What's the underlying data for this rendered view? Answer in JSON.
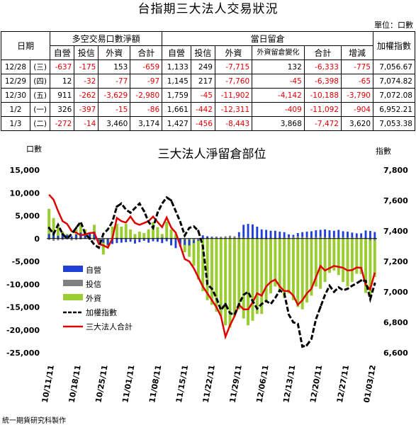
{
  "title": "台指期三大法人交易狀況",
  "unit": "單位：口數",
  "table": {
    "date_header": "日期",
    "group1": "多空交易口數淨額",
    "group2": "當日留倉",
    "index_header": "加權指數",
    "cols1": [
      "自營",
      "投信",
      "外資",
      "合計"
    ],
    "cols2": [
      "自營",
      "投信",
      "外資",
      "外資留倉變化",
      "合計",
      "增減"
    ],
    "rows": [
      {
        "date": "12/28",
        "dow": "(三)",
        "v": [
          "-637",
          "-175",
          "153",
          "-659",
          "1,133",
          "249",
          "-7,715",
          "132",
          "-6,333",
          "-775",
          "7,056.67"
        ]
      },
      {
        "date": "12/29",
        "dow": "(四)",
        "v": [
          "12",
          "-32",
          "-77",
          "-97",
          "1,145",
          "217",
          "-7,760",
          "-45",
          "-6,398",
          "-65",
          "7,074.82"
        ]
      },
      {
        "date": "12/30",
        "dow": "(五)",
        "v": [
          "911",
          "-262",
          "-3,629",
          "-2,980",
          "1,759",
          "-45",
          "-11,902",
          "-4,142",
          "-10,188",
          "-3,790",
          "7,072.08"
        ]
      },
      {
        "date": "1/2",
        "dow": "(一)",
        "v": [
          "326",
          "-397",
          "-15",
          "-86",
          "1,661",
          "-442",
          "-12,311",
          "-409",
          "-11,092",
          "-904",
          "6,952.21"
        ]
      },
      {
        "date": "1/3",
        "dow": "(二)",
        "v": [
          "-272",
          "-14",
          "3,460",
          "3,174",
          "1,427",
          "-456",
          "-8,443",
          "3,868",
          "-7,472",
          "3,620",
          "7,053.38"
        ]
      }
    ]
  },
  "footer": "統一期貨研究科製作",
  "colors": {
    "dealer": "#1f3fd6",
    "trust": "#808080",
    "foreign": "#9acd32",
    "index": "#000000",
    "total": "#e00000",
    "negative": "#e00000"
  },
  "chart_data": {
    "type": "bar",
    "title": "三大法人淨留倉部位",
    "ylabel_left": "口數",
    "ylabel_right": "指數",
    "ylim_left": [
      -25000,
      15000
    ],
    "ylim_right": [
      6600,
      7800
    ],
    "yticks_left": [
      "15,000",
      "10,000",
      "5,000",
      "0",
      "-5,000",
      "-10,000",
      "-15,000",
      "-20,000",
      "-25,000"
    ],
    "yticks_right": [
      "7,800",
      "7,600",
      "7,400",
      "7,200",
      "7,000",
      "6,800",
      "6,600"
    ],
    "xtick_labels": [
      "10/11/11",
      "10/18/11",
      "10/25/11",
      "11/01/11",
      "11/08/11",
      "11/15/11",
      "11/22/11",
      "11/29/11",
      "12/06/11",
      "12/13/11",
      "12/20/11",
      "12/27/11",
      "01/03/12"
    ],
    "legend": [
      "自營",
      "投信",
      "外資",
      "加權指數",
      "三大法人合計"
    ],
    "legend_position": "left-middle",
    "grid": false,
    "series": [
      {
        "name": "自營",
        "kind": "bar",
        "values": [
          1000,
          1500,
          600,
          1100,
          800,
          500,
          900,
          1300,
          700,
          1200,
          1500,
          -600,
          -900,
          -1400,
          -1200,
          -1000,
          -900,
          -800,
          -700,
          -1100,
          -800,
          -500,
          -900,
          -600,
          -700,
          -1000,
          -600,
          -1500,
          -2100,
          -1800,
          -1400,
          -1500,
          -1000,
          -500,
          700,
          500,
          400,
          400,
          200,
          300,
          600,
          400,
          1400,
          3000,
          3200,
          3100,
          2600,
          2000,
          1900,
          1700,
          1700,
          1500,
          1400,
          900,
          800,
          1200,
          1400,
          1500,
          1600,
          1800,
          1900,
          2000,
          1800,
          1700,
          1900,
          1600,
          1500,
          1300,
          1133,
          1145,
          1759,
          1661,
          1427
        ]
      },
      {
        "name": "投信",
        "kind": "bar",
        "values": [
          -300,
          -500,
          -400,
          -300,
          -200,
          -400,
          -300,
          -200,
          -100,
          -300,
          -400,
          -300,
          -200,
          -100,
          300,
          200,
          100,
          -100,
          -200,
          -300,
          -200,
          -100,
          0,
          100,
          200,
          300,
          200,
          100,
          0,
          -100,
          -200,
          -300,
          -400,
          -300,
          -200,
          -100,
          200,
          300,
          400,
          500,
          600,
          500,
          400,
          300,
          200,
          100,
          0,
          -100,
          -200,
          -100,
          0,
          100,
          200,
          300,
          400,
          500,
          400,
          300,
          200,
          300,
          400,
          300,
          200,
          300,
          200,
          300,
          250,
          250,
          249,
          217,
          -45,
          -442,
          -456
        ]
      },
      {
        "name": "外資",
        "kind": "bar",
        "values": [
          6500,
          4500,
          3000,
          1500,
          1000,
          0,
          2000,
          3000,
          2000,
          1000,
          3000,
          -1000,
          -3500,
          -2000,
          2600,
          3200,
          2600,
          3200,
          2000,
          1000,
          1500,
          1200,
          2000,
          3600,
          2500,
          1000,
          3700,
          2000,
          1000,
          -1000,
          -3000,
          -4000,
          -6000,
          -9000,
          -11500,
          -13500,
          -14500,
          -16000,
          -17000,
          -19000,
          -19500,
          -17000,
          -15500,
          -17500,
          -19000,
          -18000,
          -16500,
          -16500,
          -14000,
          -12000,
          -10500,
          -11500,
          -13000,
          -12000,
          -13500,
          -15000,
          -15500,
          -14000,
          -12500,
          -10500,
          -11000,
          -9500,
          -7500,
          -7000,
          -8000,
          -9500,
          -10500,
          -9500,
          -7715,
          -7760,
          -11902,
          -12311,
          -8443
        ]
      },
      {
        "name": "加權指數",
        "kind": "line",
        "axis": "right",
        "values": [
          7420,
          7380,
          7440,
          7380,
          7350,
          7380,
          7420,
          7460,
          7380,
          7350,
          7310,
          7290,
          7380,
          7410,
          7460,
          7560,
          7580,
          7540,
          7520,
          7550,
          7580,
          7530,
          7460,
          7420,
          7520,
          7580,
          7620,
          7600,
          7530,
          7460,
          7370,
          7420,
          7430,
          7400,
          7300,
          7050,
          7020,
          6960,
          6880,
          6920,
          6860,
          6850,
          6920,
          6980,
          7000,
          6940,
          6890,
          6920,
          6940,
          6920,
          6960,
          7010,
          6990,
          6850,
          6800,
          6790,
          6640,
          6650,
          6690,
          6820,
          6900,
          6980,
          7040,
          7000,
          7030,
          7010,
          7020,
          7040,
          7056.67,
          7074.82,
          7072.08,
          6952.21,
          7053.38
        ]
      },
      {
        "name": "三大法人合計",
        "kind": "line",
        "axis": "left",
        "values": [
          9600,
          8500,
          6000,
          3800,
          3200,
          1600,
          1300,
          700,
          900,
          1200,
          1300,
          -1200,
          -1500,
          -2000,
          0,
          4500,
          3800,
          3500,
          4800,
          3400,
          3000,
          3400,
          3800,
          4800,
          3600,
          2500,
          4600,
          2400,
          1300,
          -1500,
          -4500,
          -5000,
          -6500,
          -8500,
          -10500,
          -12000,
          -13500,
          -15000,
          -17000,
          -21500,
          -19000,
          -17000,
          -14500,
          -15500,
          -15500,
          -14000,
          -12000,
          -12500,
          -10500,
          -9500,
          -9000,
          -10500,
          -11500,
          -11500,
          -12500,
          -14500,
          -13500,
          -12000,
          -11000,
          -8500,
          -6000,
          -7000,
          -6500,
          -6000,
          -6200,
          -6400,
          -7000,
          -6900,
          -6333,
          -6398,
          -10188,
          -11092,
          -7472
        ]
      }
    ]
  }
}
